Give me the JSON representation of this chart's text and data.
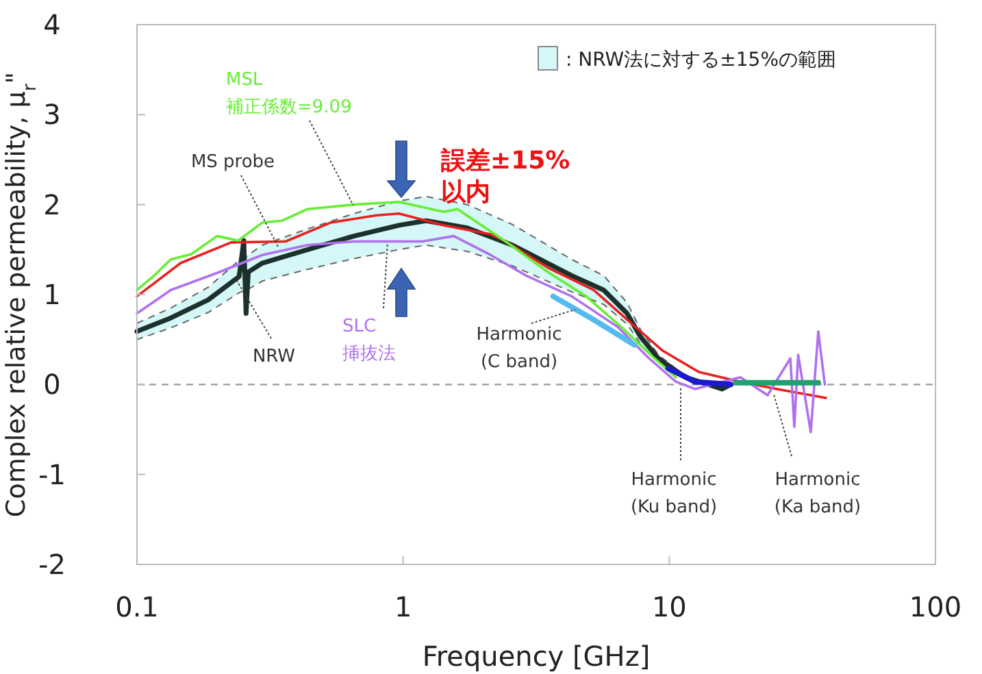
{
  "chart_data": {
    "type": "line",
    "xlabel": "Frequency [GHz]",
    "ylabel": "Complex relative permeability, μ$_{r}$\"",
    "log": "x",
    "xlim": [
      0.1,
      100
    ],
    "xticks": [
      0.1,
      1,
      10,
      100
    ],
    "ylim": [
      -2,
      4
    ],
    "yticks": [
      -2,
      -1,
      0,
      1,
      2,
      3,
      4
    ],
    "grid": false,
    "legend": "top right",
    "legend_title": ": NRW法に対する±15%の範囲",
    "line_style": "solid",
    "marker": "none",
    "ref_lines": [
      {
        "axis": "y",
        "value": 0,
        "color": "#999999",
        "line_style": "dashed"
      }
    ],
    "annotations": [
      "誤差±15%\n以内"
    ],
    "series": [
      {
        "name": "NRW",
        "color": "#1c302c",
        "x": [
          0.1,
          0.134,
          0.185,
          0.242,
          0.252,
          0.257,
          0.262,
          0.296,
          0.438,
          0.654,
          0.965,
          1.22,
          1.74,
          2.57,
          4.3,
          5.67,
          6.94,
          7.8,
          9.1,
          11.5,
          15.8,
          17
        ],
        "values": [
          0.59,
          0.74,
          0.94,
          1.2,
          1.6,
          0.79,
          1.25,
          1.35,
          1.5,
          1.65,
          1.77,
          1.82,
          1.74,
          1.55,
          1.21,
          1.05,
          0.79,
          0.53,
          0.29,
          0.08,
          -0.05,
          0
        ],
        "upper": [
          0.68,
          0.85,
          1.08,
          1.38,
          1.41,
          1.42,
          1.44,
          1.55,
          1.73,
          1.9,
          2.04,
          2.09,
          2.0,
          1.78,
          1.39,
          1.21,
          0.91,
          0.61,
          0.33,
          0.09,
          -0.04,
          0
        ],
        "lower": [
          0.5,
          0.63,
          0.8,
          1.02,
          1.04,
          1.05,
          1.06,
          1.15,
          1.28,
          1.4,
          1.5,
          1.55,
          1.48,
          1.32,
          1.03,
          0.89,
          0.67,
          0.45,
          0.25,
          0.07,
          -0.06,
          0
        ]
      },
      {
        "name": "MS probe",
        "color": "#e82020",
        "x": [
          0.1,
          0.146,
          0.226,
          0.362,
          0.535,
          0.79,
          0.965,
          1.42,
          2.13,
          2.4,
          3.54,
          5.2,
          7.2,
          9.4,
          12.9,
          18.5,
          25.4,
          38.8
        ],
        "values": [
          0.98,
          1.35,
          1.58,
          1.59,
          1.8,
          1.88,
          1.9,
          1.77,
          1.67,
          1.6,
          1.29,
          1.05,
          0.68,
          0.38,
          0.14,
          0.03,
          -0.05,
          -0.15
        ]
      },
      {
        "name": "MSL\n補正係数=9.09",
        "color": "#66ee33",
        "x": [
          0.1,
          0.115,
          0.134,
          0.16,
          0.2,
          0.24,
          0.296,
          0.35,
          0.438,
          0.654,
          0.965,
          1.42,
          1.6,
          2.4,
          3.54,
          4.87,
          6.6,
          8.8,
          10.6
        ],
        "values": [
          1.05,
          1.2,
          1.39,
          1.45,
          1.65,
          1.6,
          1.8,
          1.82,
          1.95,
          2.0,
          2.03,
          1.92,
          1.95,
          1.6,
          1.24,
          0.98,
          0.64,
          0.29,
          0.08
        ]
      },
      {
        "name": "SLC\n挿抜法",
        "color": "#b070f0",
        "x": [
          0.1,
          0.134,
          0.2,
          0.296,
          0.438,
          0.654,
          1.18,
          1.55,
          2.13,
          2.9,
          4.3,
          6.4,
          8.4,
          10.6,
          12.5,
          18.5,
          23.4,
          28.5,
          29.5,
          30.5,
          34,
          36.3,
          38.4
        ],
        "values": [
          0.79,
          1.05,
          1.24,
          1.44,
          1.55,
          1.59,
          1.59,
          1.65,
          1.44,
          1.21,
          0.98,
          0.64,
          0.29,
          0.03,
          -0.05,
          0.08,
          -0.12,
          0.29,
          -0.47,
          0.33,
          -0.53,
          0.59,
          0
        ]
      },
      {
        "name": "Harmonic\n(C band)",
        "color": "#55bbee",
        "x": [
          3.66,
          5.2,
          7.4
        ],
        "values": [
          0.98,
          0.72,
          0.44
        ]
      },
      {
        "name": "Harmonic\n(Ku band)",
        "color": "#1a1acc",
        "x": [
          9.9,
          12.5,
          17
        ],
        "values": [
          0.18,
          0.03,
          0
        ]
      },
      {
        "name": "Harmonic\n(Ka band)",
        "color": "#22a070",
        "x": [
          17.8,
          25,
          36.3
        ],
        "values": [
          0.02,
          0.02,
          0.02
        ]
      }
    ]
  }
}
